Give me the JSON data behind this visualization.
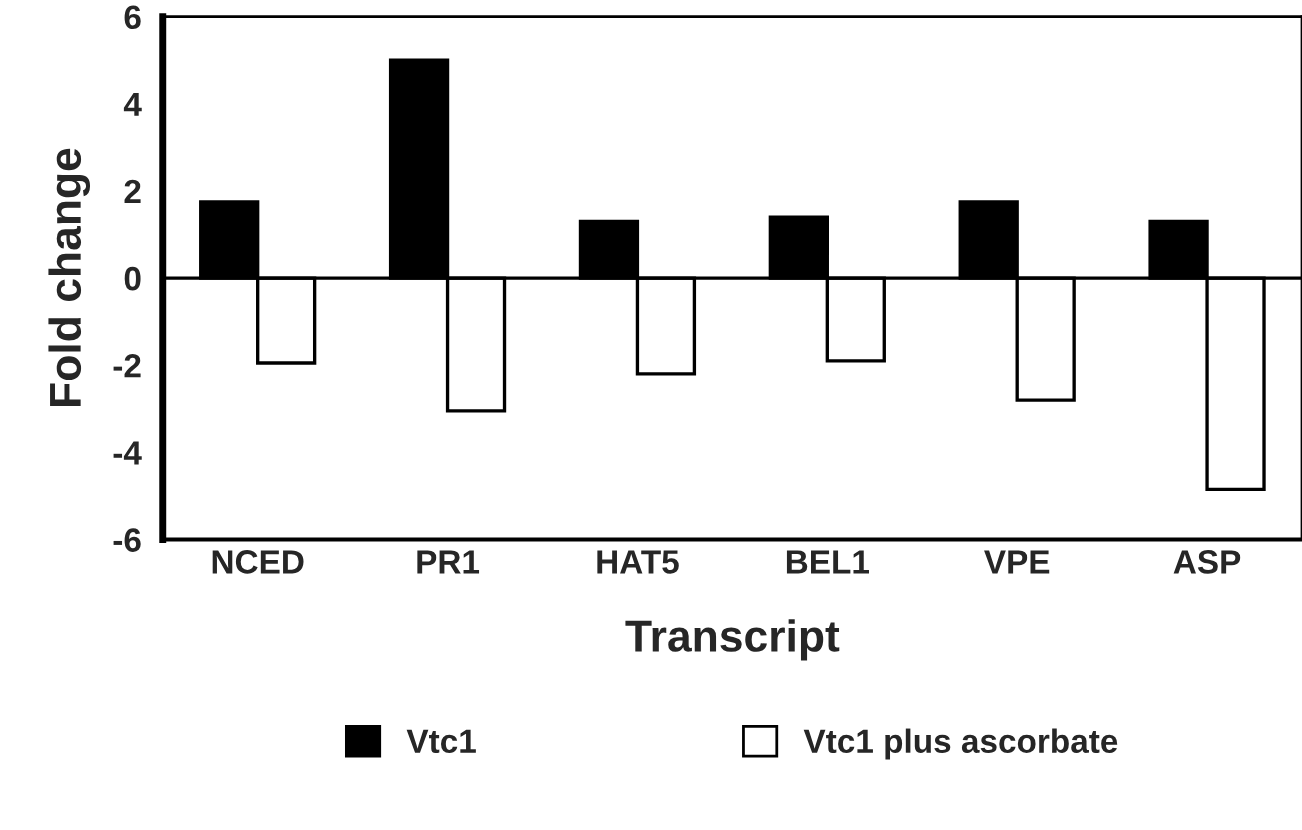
{
  "chart_data": {
    "type": "bar",
    "xlabel": "Transcript",
    "ylabel": "Fold change",
    "categories": [
      "NCED",
      "PR1",
      "HAT5",
      "BEL1",
      "VPE",
      "ASP"
    ],
    "series": [
      {
        "name": "Vtc1",
        "color": "#000000",
        "values": [
          1.75,
          5.0,
          1.3,
          1.4,
          1.75,
          1.3
        ]
      },
      {
        "name": "Vtc1 plus ascorbate",
        "color": "#ffffff",
        "values": [
          -1.95,
          -3.05,
          -2.2,
          -1.9,
          -2.8,
          -4.85
        ]
      }
    ],
    "ylim": [
      -6,
      6
    ],
    "yticks": [
      -6,
      -4,
      -2,
      0,
      2,
      4,
      6
    ],
    "ref_lines": [
      {
        "axis": "y",
        "value": 0
      }
    ],
    "grid": false,
    "legend": "bottom"
  }
}
